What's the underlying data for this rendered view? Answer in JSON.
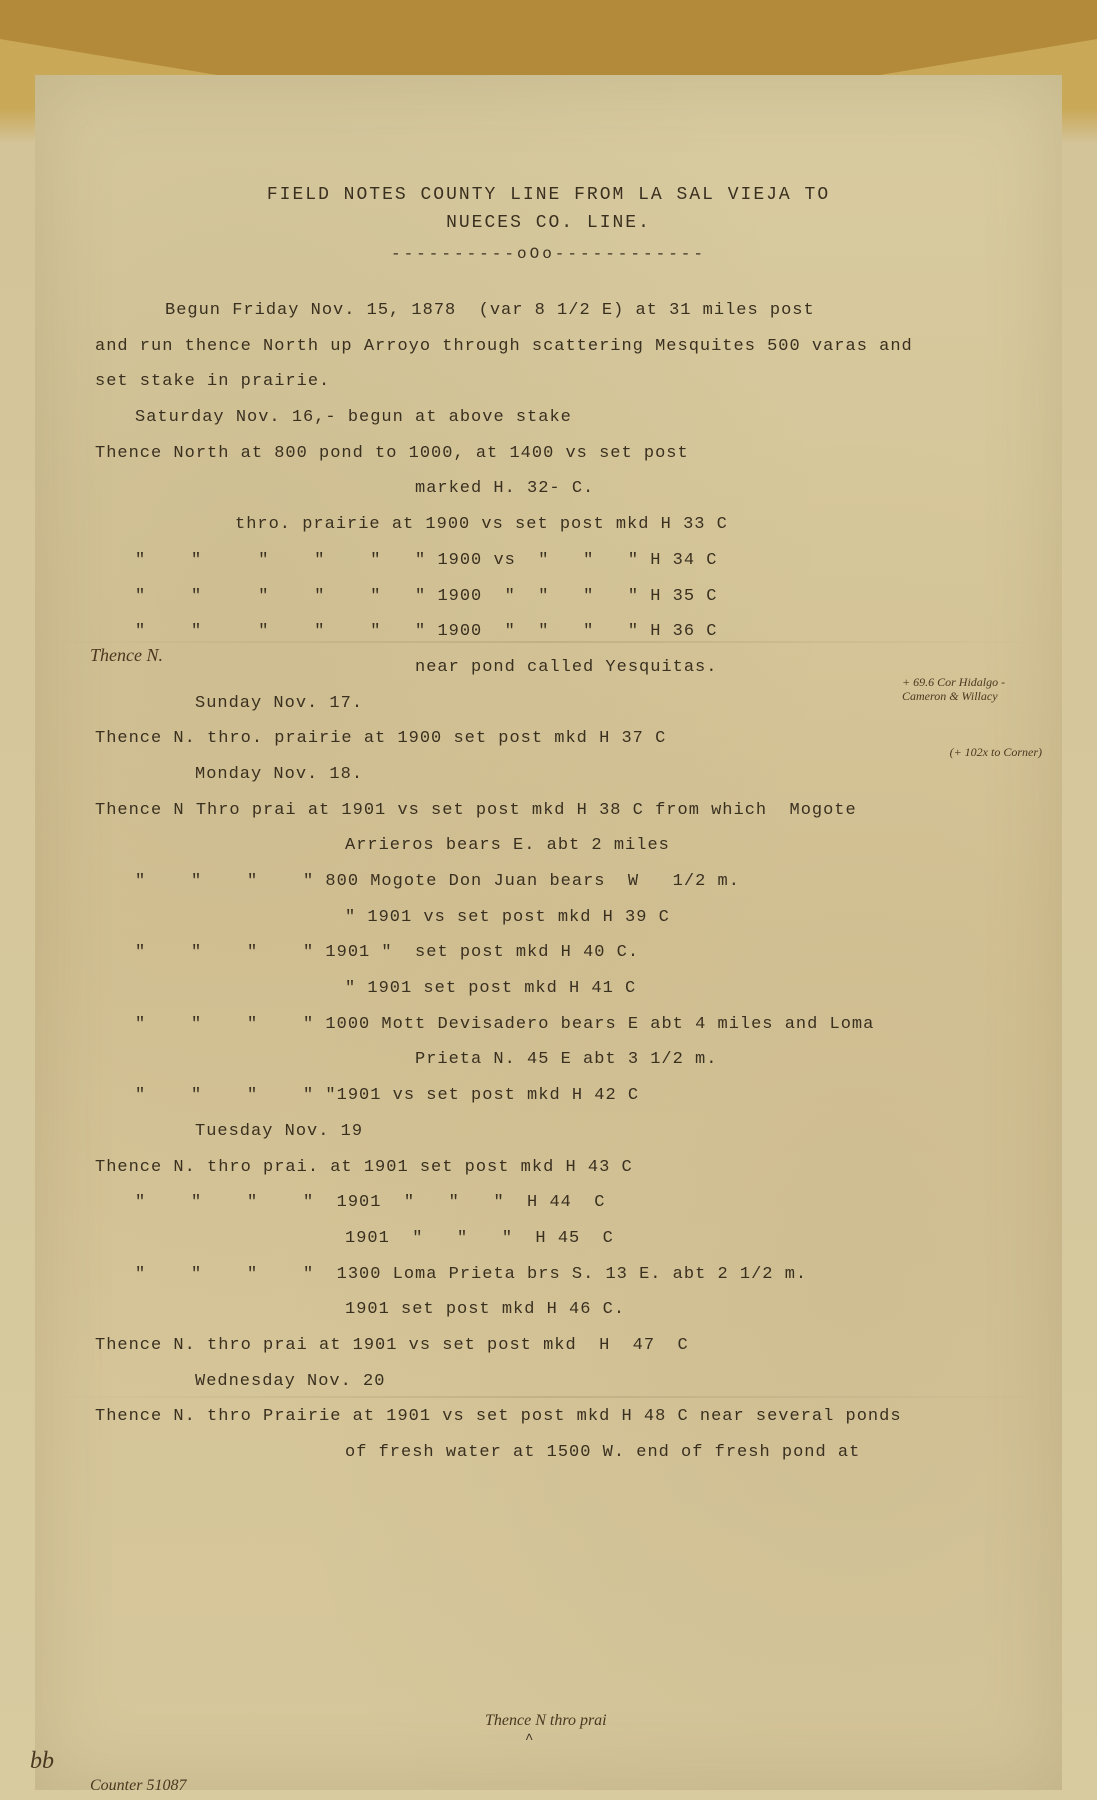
{
  "document": {
    "title": "FIELD NOTES COUNTY LINE FROM LA SAL VIEJA TO",
    "subtitle": "NUECES CO. LINE.",
    "divider": "----------oOo------------",
    "lines": [
      {
        "text": "Begun Friday Nov. 15, 1878  (var 8 1/2 E) at 31 miles post",
        "class": "indent-1"
      },
      {
        "text": "and run thence North up Arroyo through scattering Mesquites 500 varas and",
        "class": ""
      },
      {
        "text": "set stake in prairie.",
        "class": ""
      },
      {
        "text": "Saturday Nov. 16,- begun at above stake",
        "class": "indent-2"
      },
      {
        "text": "Thence North at 800 pond to 1000, at 1400 vs set post",
        "class": ""
      },
      {
        "text": "marked H. 32- C.",
        "class": "indent-3"
      },
      {
        "text": "thro. prairie at 1900 vs set post mkd H 33 C",
        "class": "indent-4"
      },
      {
        "text": "\"    \"     \"    \"    \"   \" 1900 vs  \"   \"   \" H 34 C",
        "class": "indent-2"
      },
      {
        "text": "\"    \"     \"    \"    \"   \" 1900  \"  \"   \"   \" H 35 C",
        "class": "indent-2"
      },
      {
        "text": "\"    \"     \"    \"    \"   \" 1900  \"  \"   \"   \" H 36 C",
        "class": "indent-2"
      },
      {
        "text": "near pond called Yesquitas.",
        "class": "indent-3"
      },
      {
        "text": "Sunday Nov. 17.",
        "class": "indent-6"
      },
      {
        "text": "Thence N. thro. prairie at 1900 set post mkd H 37 C",
        "class": ""
      },
      {
        "text": "Monday Nov. 18.",
        "class": "indent-6"
      },
      {
        "text": "Thence N Thro prai at 1901 vs set post mkd H 38 C from which  Mogote",
        "class": ""
      },
      {
        "text": "Arrieros bears E. abt 2 miles",
        "class": "indent-5"
      },
      {
        "text": "\"    \"    \"    \" 800 Mogote Don Juan bears  W   1/2 m.",
        "class": "indent-2"
      },
      {
        "text": "\" 1901 vs set post mkd H 39 C",
        "class": "indent-5"
      },
      {
        "text": "\"    \"    \"    \" 1901 \"  set post mkd H 40 C.",
        "class": "indent-2"
      },
      {
        "text": "\" 1901 set post mkd H 41 C",
        "class": "indent-5"
      },
      {
        "text": "\"    \"    \"    \" 1000 Mott Devisadero bears E abt 4 miles and Loma",
        "class": "indent-2"
      },
      {
        "text": "Prieta N. 45 E abt 3 1/2 m.",
        "class": "indent-3"
      },
      {
        "text": "\"    \"    \"    \" \"1901 vs set post mkd H 42 C",
        "class": "indent-2"
      },
      {
        "text": "Tuesday Nov. 19",
        "class": "indent-6"
      },
      {
        "text": "Thence N. thro prai. at 1901 set post mkd H 43 C",
        "class": ""
      },
      {
        "text": "\"    \"    \"    \"  1901  \"   \"   \"  H 44  C",
        "class": "indent-2"
      },
      {
        "text": "1901  \"   \"   \"  H 45  C",
        "class": "indent-5"
      },
      {
        "text": "\"    \"    \"    \"  1300 Loma Prieta brs S. 13 E. abt 2 1/2 m.",
        "class": "indent-2"
      },
      {
        "text": "1901 set post mkd H 46 C.",
        "class": "indent-5"
      },
      {
        "text": "Thence N. thro prai at 1901 vs set post mkd  H  47  C",
        "class": ""
      },
      {
        "text": "Wednesday Nov. 20",
        "class": "indent-6"
      },
      {
        "text": "Thence N. thro Prairie at 1901 vs set post mkd H 48 C near several ponds",
        "class": ""
      },
      {
        "text": "of fresh water at 1500 W. end of fresh pond at",
        "class": "indent-5"
      }
    ],
    "handwritten": {
      "thence": "Thence  N.",
      "margin1": "+ 69.6 Cor Hidalgo - Cameron & Willacy",
      "margin2": "(+ 102x to Corner)",
      "insert": "Thence N thro prai",
      "bb": "bb",
      "counter": "Counter 51087"
    },
    "colors": {
      "paper_bg": "#d6c79c",
      "envelope": "#b38a3a",
      "text": "#3a3020",
      "handwriting": "#4a3820"
    },
    "typography": {
      "body_fontsize": 17,
      "title_fontsize": 18,
      "line_height": 2.1,
      "font_family": "Courier New"
    }
  }
}
